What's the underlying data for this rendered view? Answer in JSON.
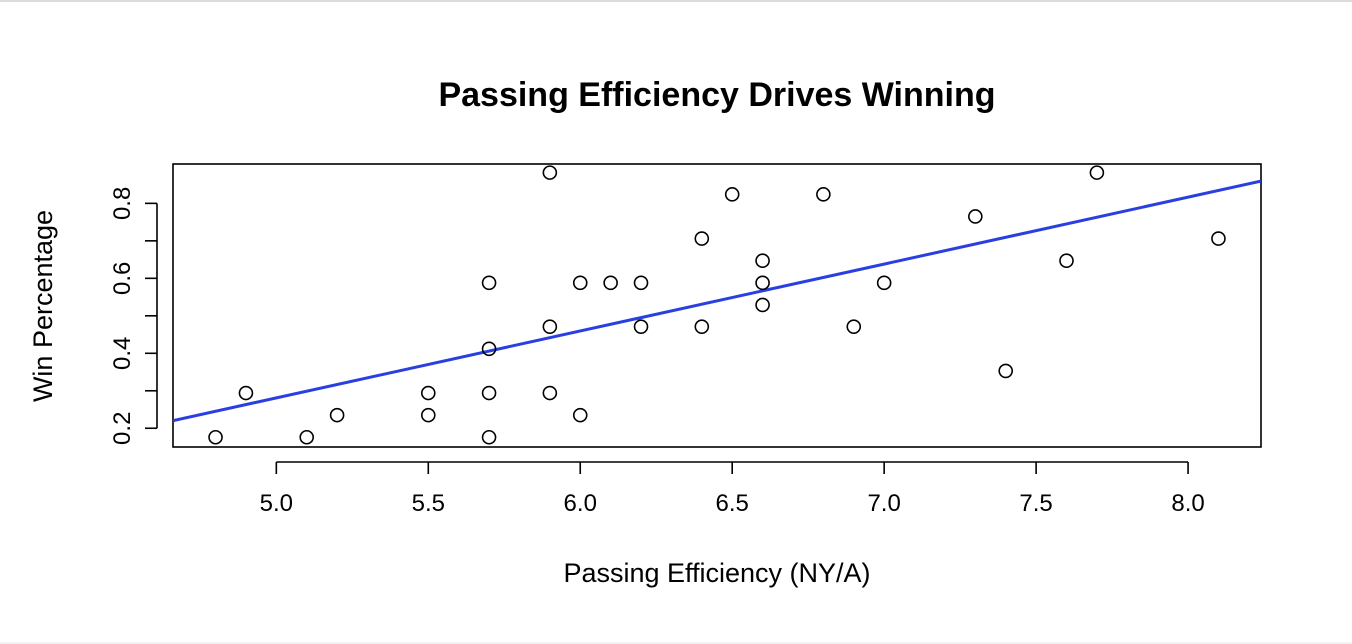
{
  "chart_data": {
    "type": "scatter",
    "title": "Passing Efficiency Drives Winning",
    "xlabel": "Passing Efficiency (NY/A)",
    "ylabel": "Win Percentage",
    "xlim": [
      4.66,
      8.24
    ],
    "ylim": [
      0.15,
      0.905
    ],
    "x_ticks": [
      5.0,
      5.5,
      6.0,
      6.5,
      7.0,
      7.5,
      8.0
    ],
    "x_tick_labels": [
      "5.0",
      "5.5",
      "6.0",
      "6.5",
      "7.0",
      "7.5",
      "8.0"
    ],
    "y_ticks": [
      0.2,
      0.3,
      0.4,
      0.5,
      0.6,
      0.7,
      0.8
    ],
    "y_tick_labels": [
      "0.2",
      "0.4",
      "0.6",
      "0.8"
    ],
    "y_labeled_ticks": [
      0.2,
      0.4,
      0.6,
      0.8
    ],
    "points": [
      {
        "x": 4.8,
        "y": 0.176
      },
      {
        "x": 4.9,
        "y": 0.294
      },
      {
        "x": 5.1,
        "y": 0.176
      },
      {
        "x": 5.2,
        "y": 0.235
      },
      {
        "x": 5.5,
        "y": 0.294
      },
      {
        "x": 5.5,
        "y": 0.235
      },
      {
        "x": 5.7,
        "y": 0.588
      },
      {
        "x": 5.7,
        "y": 0.412
      },
      {
        "x": 5.7,
        "y": 0.294
      },
      {
        "x": 5.7,
        "y": 0.176
      },
      {
        "x": 5.9,
        "y": 0.882
      },
      {
        "x": 5.9,
        "y": 0.471
      },
      {
        "x": 5.9,
        "y": 0.294
      },
      {
        "x": 6.0,
        "y": 0.588
      },
      {
        "x": 6.0,
        "y": 0.235
      },
      {
        "x": 6.1,
        "y": 0.588
      },
      {
        "x": 6.2,
        "y": 0.588
      },
      {
        "x": 6.2,
        "y": 0.471
      },
      {
        "x": 6.4,
        "y": 0.706
      },
      {
        "x": 6.4,
        "y": 0.471
      },
      {
        "x": 6.5,
        "y": 0.824
      },
      {
        "x": 6.6,
        "y": 0.647
      },
      {
        "x": 6.6,
        "y": 0.588
      },
      {
        "x": 6.6,
        "y": 0.529
      },
      {
        "x": 6.8,
        "y": 0.824
      },
      {
        "x": 6.9,
        "y": 0.471
      },
      {
        "x": 7.0,
        "y": 0.588
      },
      {
        "x": 7.3,
        "y": 0.765
      },
      {
        "x": 7.4,
        "y": 0.353
      },
      {
        "x": 7.6,
        "y": 0.647
      },
      {
        "x": 7.7,
        "y": 0.882
      },
      {
        "x": 8.1,
        "y": 0.706
      }
    ],
    "fit_line": {
      "slope": 0.1785,
      "intercept": -0.6115,
      "color": "#2a3fe0"
    },
    "grid": false,
    "legend": "none"
  }
}
